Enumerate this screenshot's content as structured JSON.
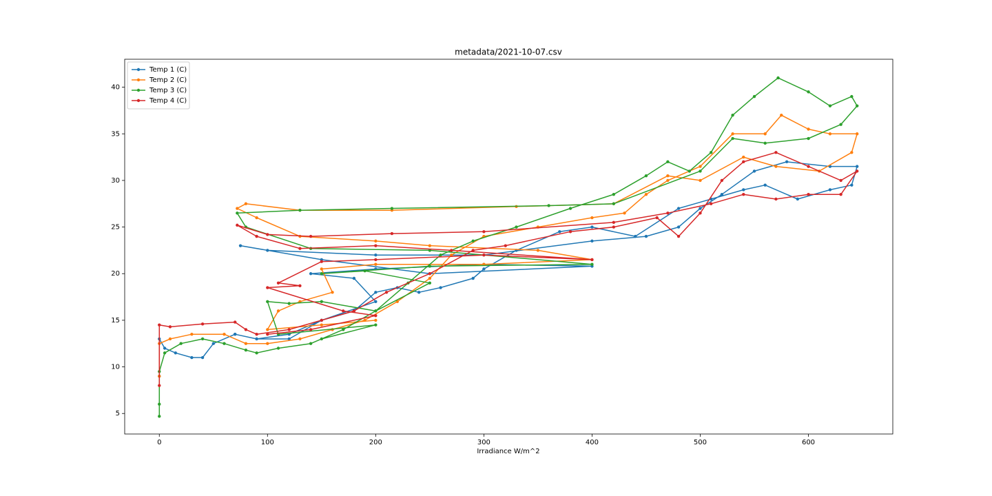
{
  "chart_data": {
    "type": "line",
    "title": "metadata/2021-10-07.csv",
    "xlabel": "Irradiance W/m^2",
    "xlim": [
      -32,
      678
    ],
    "ylim": [
      2.8,
      43
    ],
    "xticks": [
      0,
      100,
      200,
      300,
      400,
      500,
      600
    ],
    "yticks": [
      5,
      10,
      15,
      20,
      25,
      30,
      35,
      40
    ],
    "grid": false,
    "legend": "upper left",
    "markers": true,
    "series": [
      {
        "name": "Temp 1 (C)",
        "color": "#1f77b4",
        "x": [
          0,
          0,
          5,
          15,
          30,
          40,
          50,
          70,
          90,
          120,
          150,
          180,
          200,
          220,
          240,
          260,
          290,
          300,
          330,
          370,
          400,
          440,
          480,
          510,
          540,
          560,
          590,
          620,
          640,
          645,
          620,
          580,
          550,
          520,
          500,
          480,
          450,
          400,
          300,
          200,
          100,
          75,
          150,
          250,
          400,
          300,
          200,
          140,
          180,
          200,
          150,
          120,
          90,
          70
        ],
        "values": [
          9,
          13,
          12,
          11.5,
          11,
          11,
          12.5,
          13.5,
          13,
          13.5,
          15,
          16,
          18,
          18.5,
          18,
          18.5,
          19.5,
          20.5,
          22.5,
          24.5,
          25,
          24,
          27,
          28,
          29,
          29.5,
          28,
          29,
          29.5,
          31.5,
          31.5,
          32,
          31,
          28.5,
          27,
          25,
          24,
          23.5,
          22,
          22,
          22.5,
          23,
          21.5,
          20,
          20.8,
          21,
          20.5,
          20,
          19.5,
          17,
          15,
          13,
          13,
          13.5
        ]
      },
      {
        "name": "Temp 2 (C)",
        "color": "#ff7f0e",
        "x": [
          0,
          0,
          10,
          30,
          60,
          80,
          100,
          130,
          160,
          190,
          220,
          250,
          270,
          300,
          350,
          400,
          430,
          450,
          470,
          500,
          530,
          560,
          575,
          600,
          620,
          645,
          640,
          610,
          570,
          540,
          500,
          470,
          420,
          330,
          215,
          130,
          80,
          72,
          90,
          130,
          200,
          250,
          350,
          400,
          300,
          200,
          150,
          160,
          130,
          110,
          100,
          200,
          150
        ],
        "values": [
          9,
          12.5,
          13,
          13.5,
          13.5,
          12.5,
          12.5,
          13,
          14,
          15,
          17,
          19.5,
          22,
          24,
          25,
          26,
          26.5,
          28.5,
          30,
          31.5,
          35,
          35,
          37,
          35.5,
          35,
          35,
          33,
          31,
          31.5,
          32.5,
          30,
          30.5,
          27.5,
          27.2,
          26.8,
          26.8,
          27.5,
          27,
          26,
          24,
          23.5,
          23,
          22.5,
          21.5,
          21,
          21,
          20.5,
          18,
          17,
          16,
          14,
          15,
          14.5
        ]
      },
      {
        "name": "Temp 3 (C)",
        "color": "#2ca02c",
        "x": [
          0,
          0,
          0,
          5,
          20,
          40,
          60,
          80,
          90,
          110,
          140,
          170,
          200,
          230,
          260,
          290,
          330,
          380,
          420,
          450,
          470,
          490,
          510,
          530,
          550,
          572,
          600,
          620,
          640,
          645,
          630,
          600,
          560,
          530,
          500,
          420,
          360,
          215,
          130,
          72,
          80,
          140,
          250,
          400,
          250,
          150,
          190,
          250,
          200,
          150,
          120,
          100,
          110,
          200,
          150
        ],
        "values": [
          4.7,
          6,
          9.5,
          11.5,
          12.5,
          13,
          12.5,
          11.8,
          11.5,
          12,
          12.5,
          14,
          16,
          19,
          22,
          23.5,
          25,
          27,
          28.5,
          30.5,
          32,
          31,
          33,
          37,
          39,
          41,
          39.5,
          38,
          39,
          38,
          36,
          34.5,
          34,
          34.5,
          31,
          27.5,
          27.3,
          27,
          26.8,
          26.5,
          25,
          22.7,
          22.5,
          21,
          20.8,
          20,
          20.3,
          19,
          16,
          17,
          16.8,
          17,
          13.5,
          14.5,
          13
        ]
      },
      {
        "name": "Temp 4 (C)",
        "color": "#d62728",
        "x": [
          0,
          0,
          10,
          40,
          70,
          80,
          90,
          120,
          150,
          180,
          210,
          250,
          290,
          320,
          380,
          420,
          460,
          480,
          500,
          520,
          540,
          570,
          600,
          630,
          645,
          630,
          600,
          570,
          540,
          510,
          470,
          420,
          300,
          215,
          140,
          100,
          72,
          90,
          130,
          200,
          270,
          400,
          300,
          200,
          150,
          110,
          130,
          100,
          170,
          200,
          140,
          100
        ],
        "values": [
          8,
          14.5,
          14.3,
          14.6,
          14.8,
          14,
          13.5,
          14,
          15,
          16,
          18,
          20,
          22.5,
          23,
          24.5,
          25,
          26,
          24,
          26.5,
          30,
          32,
          33,
          31.5,
          30,
          31,
          28.5,
          28.5,
          28,
          28.5,
          27.5,
          26.5,
          25.5,
          24.5,
          24.3,
          24,
          24.2,
          25.2,
          24,
          22.7,
          23,
          22.5,
          21.5,
          22,
          21.5,
          21.3,
          19,
          18.7,
          18.5,
          16,
          15.5,
          14,
          13.5
        ]
      }
    ]
  }
}
